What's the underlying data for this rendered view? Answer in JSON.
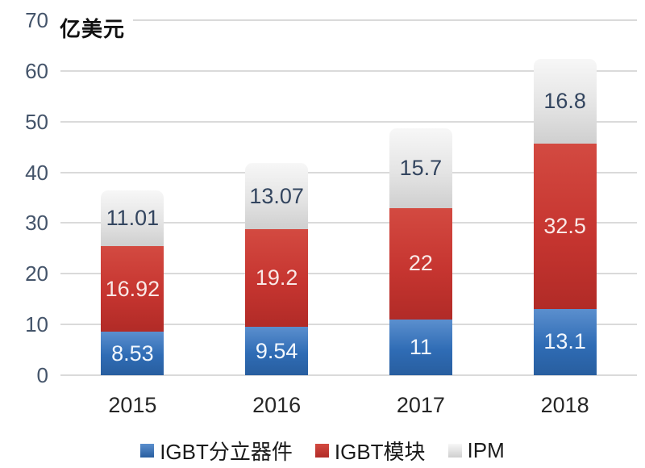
{
  "chart_data": {
    "type": "bar",
    "stacked": true,
    "unit": "亿美元",
    "categories": [
      "2015",
      "2016",
      "2017",
      "2018"
    ],
    "series": [
      {
        "key": "igbt-discrete",
        "name": "IGBT分立器件",
        "values": [
          8.53,
          9.54,
          11,
          13.1
        ],
        "labels": [
          "8.53",
          "9.54",
          "11",
          "13.1"
        ],
        "color": "#2f6cb5",
        "color_top": "#5b8fce",
        "color_bottom": "#285e9f",
        "label_color": "#f2f7fd"
      },
      {
        "key": "igbt-module",
        "name": "IGBT模块",
        "values": [
          16.92,
          19.2,
          22,
          32.5
        ],
        "labels": [
          "16.92",
          "19.2",
          "22",
          "32.5"
        ],
        "color": "#c63530",
        "color_top": "#d34a41",
        "color_bottom": "#b12b27",
        "label_color": "#f9e8e6"
      },
      {
        "key": "ipm",
        "name": "IPM",
        "values": [
          11.01,
          13.07,
          15.7,
          16.8
        ],
        "labels": [
          "11.01",
          "13.07",
          "15.7",
          "16.8"
        ],
        "color": "#e4e4e4",
        "color_top": "#f7f7f7",
        "color_bottom": "#cfcfcf",
        "label_color": "#33455f"
      }
    ],
    "y_axis": {
      "min": 0,
      "max": 70,
      "step": 10,
      "ticks": [
        "0",
        "10",
        "20",
        "30",
        "40",
        "50",
        "60",
        "70"
      ],
      "grid": true,
      "tick_color": "#44546a"
    },
    "x_axis": {
      "label_color": "#262626"
    },
    "legend": {
      "position": "bottom"
    },
    "colors": {
      "grid": "#dadada",
      "background": "#ffffff"
    }
  }
}
